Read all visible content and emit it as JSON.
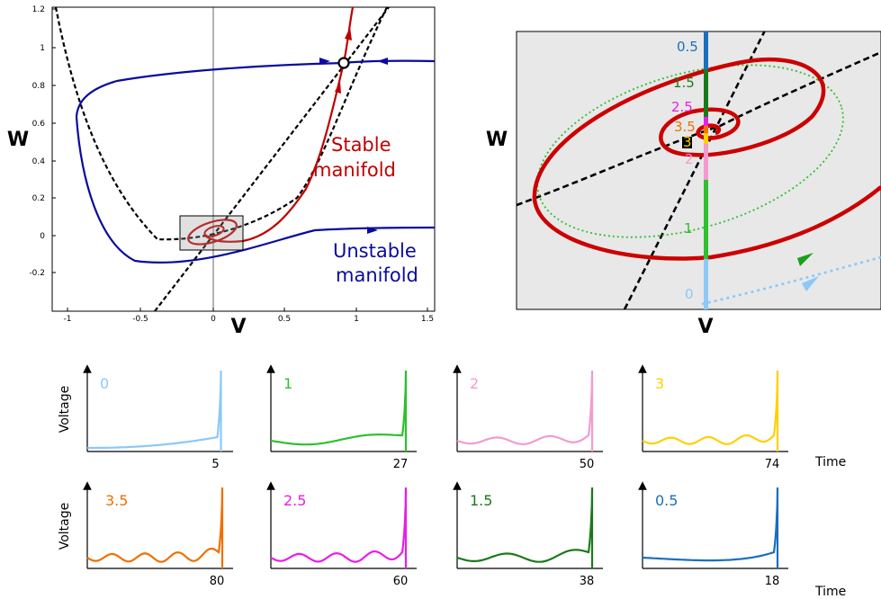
{
  "left_panel": {
    "x_ticks": [
      "-1",
      "-0.5",
      "0",
      "0.5",
      "1",
      "1.5"
    ],
    "y_ticks": [
      "1.2",
      "1",
      "0.8",
      "0.6",
      "0.4",
      "0.2",
      "0",
      "-0.2"
    ],
    "xlabel": "V",
    "ylabel": "W",
    "stable_label_line1": "Stable",
    "stable_label_line2": "manifold",
    "unstable_label_line1": "Unstable",
    "unstable_label_line2": "manifold",
    "colors": {
      "unstable": "#0a0aa0",
      "stable": "#c00000",
      "nullcline": "#000000"
    }
  },
  "right_panel": {
    "xlabel": "V",
    "ylabel": "W",
    "markers": [
      {
        "label": "0.5",
        "color": "#1a6fbf"
      },
      {
        "label": "1.5",
        "color": "#1a7a1a"
      },
      {
        "label": "2.5",
        "color": "#e81ee8"
      },
      {
        "label": "3.5",
        "color": "#f07000"
      },
      {
        "label": "3",
        "color": "#ffd000"
      },
      {
        "label": "2",
        "color": "#f49ad0"
      },
      {
        "label": "1",
        "color": "#2ec02e"
      },
      {
        "label": "0",
        "color": "#8cc8f8"
      }
    ]
  },
  "traces": {
    "ylabel": "Voltage",
    "xlabel": "Time",
    "panels": [
      {
        "label": "0",
        "end_time": "5",
        "color": "#8cc8f8"
      },
      {
        "label": "1",
        "end_time": "27",
        "color": "#2ec02e"
      },
      {
        "label": "2",
        "end_time": "50",
        "color": "#f49ad0"
      },
      {
        "label": "3",
        "end_time": "74",
        "color": "#ffd000"
      },
      {
        "label": "3.5",
        "end_time": "80",
        "color": "#f07000"
      },
      {
        "label": "2.5",
        "end_time": "60",
        "color": "#e81ee8"
      },
      {
        "label": "1.5",
        "end_time": "38",
        "color": "#1a7a1a"
      },
      {
        "label": "0.5",
        "end_time": "18",
        "color": "#1a6fbf"
      }
    ]
  }
}
